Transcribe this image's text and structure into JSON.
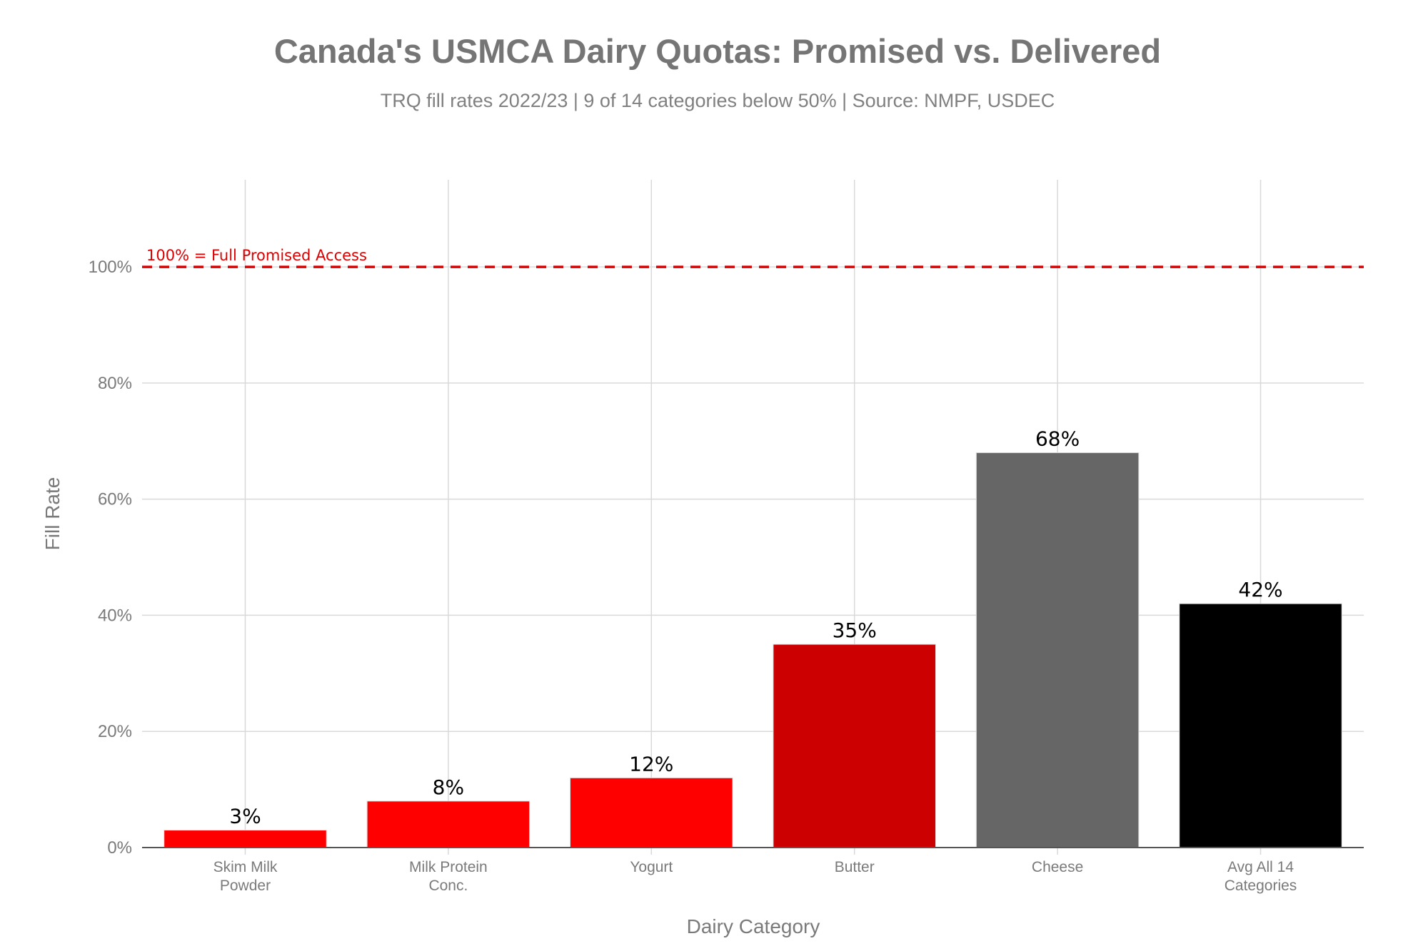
{
  "chart_data": {
    "type": "bar",
    "title": "Canada's USMCA Dairy Quotas: Promised vs. Delivered",
    "subtitle": "TRQ fill rates 2022/23 | 9 of 14 categories below 50% | Source: NMPF, USDEC",
    "xlabel": "Dairy Category",
    "ylabel": "Fill Rate",
    "categories": [
      [
        "Skim Milk",
        "Powder"
      ],
      [
        "Milk Protein",
        "Conc."
      ],
      [
        "Yogurt"
      ],
      [
        "Butter"
      ],
      [
        "Cheese"
      ],
      [
        "Avg All 14",
        "Categories"
      ]
    ],
    "values": [
      3,
      8,
      12,
      35,
      68,
      42
    ],
    "data_labels": [
      "3%",
      "8%",
      "12%",
      "35%",
      "68%",
      "42%"
    ],
    "colors": [
      "#ff0000",
      "#ff0000",
      "#ff0000",
      "#cc0000",
      "#666666",
      "#000000"
    ],
    "ylim": [
      0,
      115
    ],
    "yticks": [
      0,
      20,
      40,
      60,
      80,
      100
    ],
    "ytick_labels": [
      "0%",
      "20%",
      "40%",
      "60%",
      "80%",
      "100%"
    ],
    "grid": true,
    "reference_line": {
      "value": 100,
      "label": "100% = Full Promised Access",
      "color": "#dd0000",
      "style": "dashed"
    }
  }
}
